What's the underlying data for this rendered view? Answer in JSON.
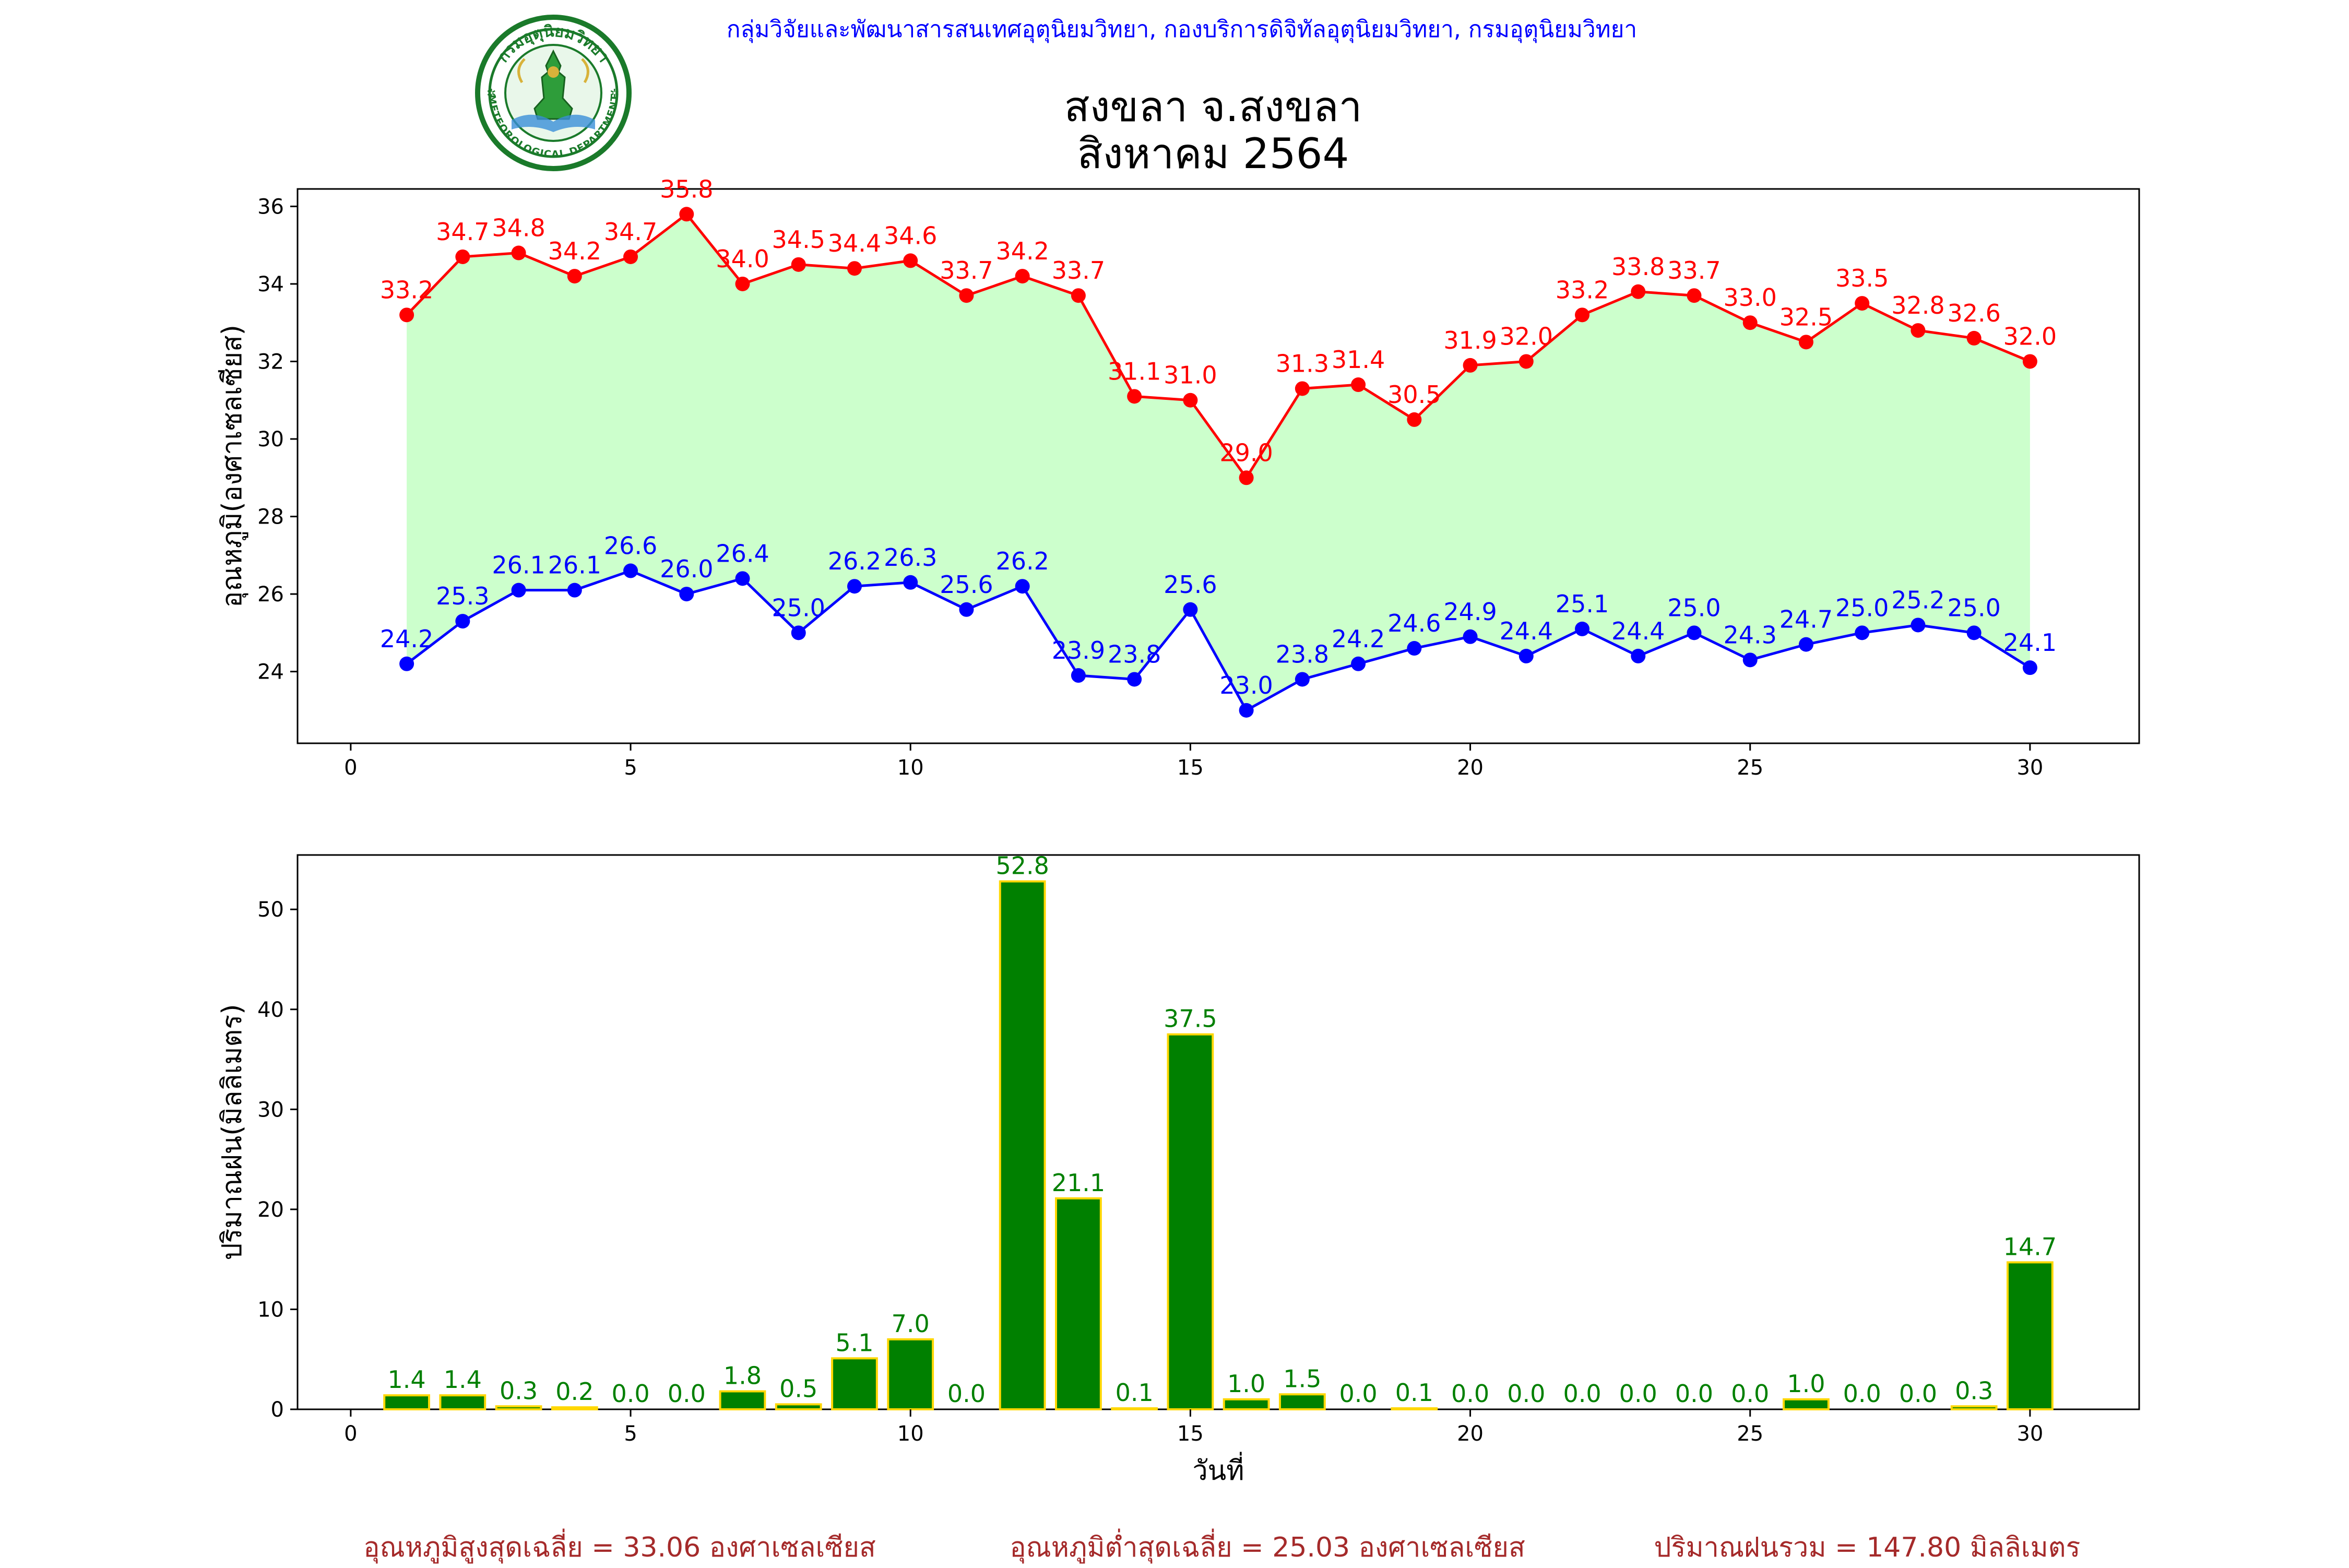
{
  "header": {
    "org_line": "กลุ่มวิจัยและพัฒนาสารสนเทศอุตุนิยมวิทยา, กองบริการดิจิทัลอุตุนิยมวิทยา, กรมอุตุนิยมวิทยา",
    "title_line1": "สงขลา จ.สงขลา",
    "title_line2": "สิงหาคม 2564"
  },
  "logo": {
    "ring_top_text": "กรมอุตุนิยมวิทยา",
    "ring_bottom_text": "METEOROLOGICAL DEPARTMENT"
  },
  "colors": {
    "max_line": "#ff0000",
    "min_line": "#0000ff",
    "fill_band": "#ccffcc",
    "bar_fill": "#008000",
    "bar_edge": "#ffd700",
    "bar_label": "#008000",
    "org_text": "#0000ff",
    "footer_text": "#a52a2a"
  },
  "chart_data": [
    {
      "type": "line",
      "ylabel": "อุณหภูมิ(องศาเซลเซียส)",
      "xlabel": "",
      "xlim": [
        -0.95,
        31.95
      ],
      "ylim": [
        22.15,
        36.45
      ],
      "xticks": [
        0,
        5,
        10,
        15,
        20,
        25,
        30
      ],
      "yticks": [
        24,
        26,
        28,
        30,
        32,
        34,
        36
      ],
      "x": [
        1,
        2,
        3,
        4,
        5,
        6,
        7,
        8,
        9,
        10,
        11,
        12,
        13,
        14,
        15,
        16,
        17,
        18,
        19,
        20,
        21,
        22,
        23,
        24,
        25,
        26,
        27,
        28,
        29,
        30
      ],
      "series": [
        {
          "values": [
            33.2,
            34.7,
            34.8,
            34.2,
            34.7,
            35.8,
            34.0,
            34.5,
            34.4,
            34.6,
            33.7,
            34.2,
            33.7,
            31.1,
            31.0,
            29.0,
            31.3,
            31.4,
            30.5,
            31.9,
            32.0,
            33.2,
            33.8,
            33.7,
            33.0,
            32.5,
            33.5,
            32.8,
            32.6,
            32.0
          ]
        },
        {
          "values": [
            24.2,
            25.3,
            26.1,
            26.1,
            26.6,
            26.0,
            26.4,
            25.0,
            26.2,
            26.3,
            25.6,
            26.2,
            23.9,
            23.8,
            25.6,
            23.0,
            23.8,
            24.2,
            24.6,
            24.9,
            24.4,
            25.1,
            24.4,
            25.0,
            24.3,
            24.7,
            25.0,
            25.2,
            25.0,
            24.1
          ]
        }
      ]
    },
    {
      "type": "bar",
      "ylabel": "ปริมาณฝน(มิลลิเมตร)",
      "xlabel": "วันที่",
      "xlim": [
        -0.95,
        31.95
      ],
      "ylim": [
        0,
        55.44
      ],
      "xticks": [
        0,
        5,
        10,
        15,
        20,
        25,
        30
      ],
      "yticks": [
        0,
        10,
        20,
        30,
        40,
        50
      ],
      "x": [
        1,
        2,
        3,
        4,
        5,
        6,
        7,
        8,
        9,
        10,
        11,
        12,
        13,
        14,
        15,
        16,
        17,
        18,
        19,
        20,
        21,
        22,
        23,
        24,
        25,
        26,
        27,
        28,
        29,
        30
      ],
      "values": [
        1.4,
        1.4,
        0.3,
        0.2,
        0.0,
        0.0,
        1.8,
        0.5,
        5.1,
        7.0,
        0.0,
        52.8,
        21.1,
        0.1,
        37.5,
        1.0,
        1.5,
        0.0,
        0.1,
        0.0,
        0.0,
        0.0,
        0.0,
        0.0,
        0.0,
        1.0,
        0.0,
        0.0,
        0.3,
        14.7
      ]
    }
  ],
  "footer": {
    "avg_max": "อุณหภูมิสูงสุดเฉลี่ย = 33.06 องศาเซลเซียส",
    "avg_min": "อุณหภูมิต่ำสุดเฉลี่ย = 25.03 องศาเซลเซียส",
    "total_rain": "ปริมาณฝนรวม = 147.80 มิลลิเมตร"
  }
}
